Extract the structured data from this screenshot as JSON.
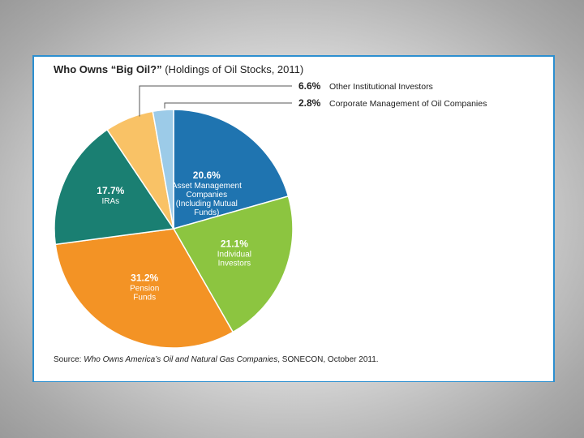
{
  "slide": {
    "title_bold": "Who Owns “Big Oil?”",
    "title_rest": " (Holdings of Oil Stocks, 2011)",
    "source_prefix": "Source: ",
    "source_italic": "Who Owns America’s Oil and Natural Gas Companies",
    "source_suffix": ", SONECON, October 2011."
  },
  "colors": {
    "frame": "#2c8fd0",
    "background": "#c8c8c8"
  },
  "chart_data": {
    "type": "pie",
    "title": "Who Owns “Big Oil?” (Holdings of Oil Stocks, 2011)",
    "unit": "%",
    "start_angle_deg": 0,
    "direction": "clockwise",
    "slices": [
      {
        "label_lines": [
          "Asset Management",
          "Companies",
          "(Including Mutual",
          "Funds)"
        ],
        "value": 20.6,
        "value_label": "20.6%",
        "color": "#1f74b0",
        "placement": "inside"
      },
      {
        "label_lines": [
          "Individual",
          "Investors"
        ],
        "value": 21.1,
        "value_label": "21.1%",
        "color": "#8cc540",
        "placement": "inside"
      },
      {
        "label_lines": [
          "Pension",
          "Funds"
        ],
        "value": 31.2,
        "value_label": "31.2%",
        "color": "#f39325",
        "placement": "inside"
      },
      {
        "label_lines": [
          "IRAs"
        ],
        "value": 17.7,
        "value_label": "17.7%",
        "color": "#1a7f72",
        "placement": "inside"
      },
      {
        "label_lines": [
          "Other Institutional Investors"
        ],
        "value": 6.6,
        "value_label": "6.6%",
        "color": "#f9c266",
        "placement": "callout"
      },
      {
        "label_lines": [
          "Corporate Management of Oil Companies"
        ],
        "value": 2.8,
        "value_label": "2.8%",
        "color": "#9ccbe8",
        "placement": "callout"
      }
    ]
  }
}
